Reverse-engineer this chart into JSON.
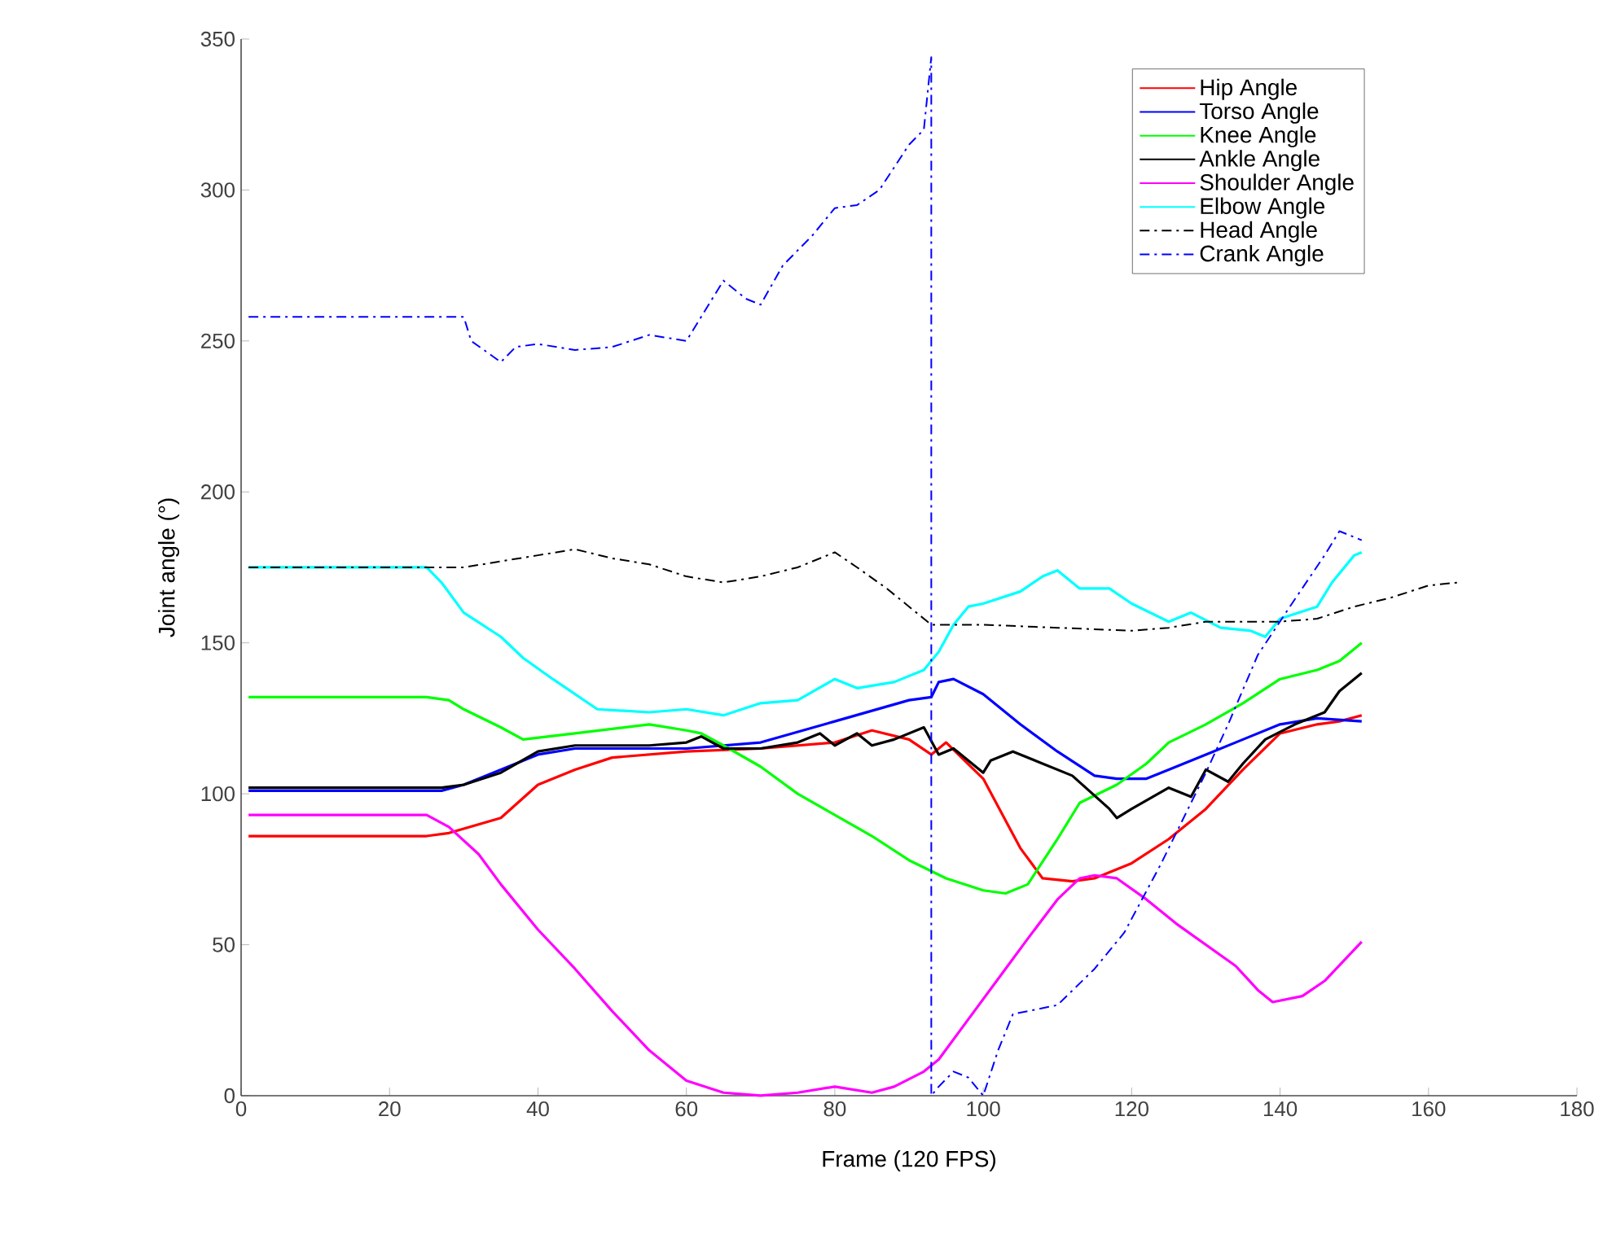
{
  "chart_data": {
    "type": "line",
    "xlabel": "Frame (120 FPS)",
    "ylabel": "Joint angle (°)",
    "xlim": [
      0,
      180
    ],
    "ylim": [
      0,
      350
    ],
    "xticks": [
      0,
      20,
      40,
      60,
      80,
      100,
      120,
      140,
      160,
      180
    ],
    "yticks": [
      0,
      50,
      100,
      150,
      200,
      250,
      300,
      350
    ],
    "grid": false,
    "legend": "top right",
    "marker": "none",
    "series": [
      {
        "name": "Hip Angle",
        "color": "#ff0000",
        "line_style": "solid",
        "x": [
          1,
          25,
          28,
          35,
          40,
          45,
          50,
          60,
          70,
          80,
          85,
          90,
          93,
          95,
          100,
          105,
          108,
          112,
          115,
          120,
          125,
          130,
          135,
          140,
          145,
          148,
          151
        ],
        "values": [
          86,
          86,
          87,
          92,
          103,
          108,
          112,
          114,
          115,
          117,
          121,
          118,
          113,
          117,
          105,
          82,
          72,
          71,
          72,
          77,
          85,
          95,
          108,
          120,
          123,
          124,
          126
        ]
      },
      {
        "name": "Torso Angle",
        "color": "#0000ff",
        "line_style": "solid",
        "x": [
          1,
          27,
          30,
          35,
          40,
          45,
          60,
          70,
          80,
          90,
          93,
          94,
          96,
          100,
          105,
          110,
          115,
          118,
          122,
          125,
          130,
          135,
          140,
          145,
          151
        ],
        "values": [
          101,
          101,
          103,
          108,
          113,
          115,
          115,
          117,
          124,
          131,
          132,
          137,
          138,
          133,
          123,
          114,
          106,
          105,
          105,
          108,
          113,
          118,
          123,
          125,
          124
        ]
      },
      {
        "name": "Knee Angle",
        "color": "#00ff00",
        "line_style": "solid",
        "x": [
          1,
          25,
          28,
          30,
          35,
          38,
          45,
          55,
          60,
          62,
          65,
          70,
          75,
          80,
          85,
          90,
          95,
          100,
          103,
          106,
          110,
          113,
          118,
          122,
          125,
          130,
          135,
          140,
          145,
          148,
          151
        ],
        "values": [
          132,
          132,
          131,
          128,
          122,
          118,
          120,
          123,
          121,
          120,
          116,
          109,
          100,
          93,
          86,
          78,
          72,
          68,
          67,
          70,
          85,
          97,
          103,
          110,
          117,
          123,
          130,
          138,
          141,
          144,
          150
        ]
      },
      {
        "name": "Ankle Angle",
        "color": "#000000",
        "line_style": "solid",
        "x": [
          1,
          27,
          30,
          35,
          40,
          45,
          55,
          60,
          62,
          65,
          70,
          75,
          78,
          80,
          83,
          85,
          88,
          92,
          94,
          96,
          100,
          101,
          104,
          108,
          112,
          117,
          118,
          120,
          125,
          128,
          130,
          133,
          135,
          138,
          142,
          146,
          148,
          151
        ],
        "values": [
          102,
          102,
          103,
          107,
          114,
          116,
          116,
          117,
          119,
          115,
          115,
          117,
          120,
          116,
          120,
          116,
          118,
          122,
          113,
          115,
          107,
          111,
          114,
          110,
          106,
          95,
          92,
          95,
          102,
          99,
          108,
          104,
          110,
          118,
          123,
          127,
          134,
          140
        ]
      },
      {
        "name": "Shoulder Angle",
        "color": "#ff00ff",
        "line_style": "solid",
        "x": [
          1,
          25,
          28,
          32,
          35,
          40,
          45,
          50,
          55,
          60,
          65,
          70,
          75,
          80,
          85,
          88,
          92,
          94,
          97,
          100,
          103,
          106,
          110,
          113,
          115,
          118,
          122,
          126,
          130,
          134,
          137,
          139,
          143,
          146,
          151
        ],
        "values": [
          93,
          93,
          89,
          80,
          70,
          55,
          42,
          28,
          15,
          5,
          1,
          0,
          1,
          3,
          1,
          3,
          8,
          12,
          22,
          32,
          42,
          52,
          65,
          72,
          73,
          72,
          65,
          57,
          50,
          43,
          35,
          31,
          33,
          38,
          51
        ]
      },
      {
        "name": "Elbow Angle",
        "color": "#00ffff",
        "line_style": "solid",
        "x": [
          1,
          25,
          27,
          30,
          35,
          38,
          42,
          45,
          48,
          55,
          60,
          65,
          70,
          75,
          80,
          83,
          88,
          92,
          94,
          96,
          98,
          100,
          105,
          108,
          110,
          113,
          117,
          120,
          125,
          128,
          132,
          136,
          138,
          140,
          145,
          147,
          150,
          151
        ],
        "values": [
          175,
          175,
          170,
          160,
          152,
          145,
          138,
          133,
          128,
          127,
          128,
          126,
          130,
          131,
          138,
          135,
          137,
          141,
          147,
          156,
          162,
          163,
          167,
          172,
          174,
          168,
          168,
          163,
          157,
          160,
          155,
          154,
          152,
          158,
          162,
          170,
          179,
          180
        ]
      },
      {
        "name": "Head Angle",
        "color": "#000000",
        "line_style": "dashdot",
        "x": [
          1,
          30,
          35,
          40,
          45,
          50,
          55,
          60,
          65,
          70,
          75,
          80,
          83,
          87,
          90,
          93,
          100,
          110,
          120,
          125,
          130,
          140,
          145,
          150,
          155,
          160,
          164
        ],
        "values": [
          175,
          175,
          177,
          179,
          181,
          178,
          176,
          172,
          170,
          172,
          175,
          180,
          175,
          168,
          162,
          156,
          156,
          155,
          154,
          155,
          157,
          157,
          158,
          162,
          165,
          169,
          170
        ]
      },
      {
        "name": "Crank Angle",
        "color": "#0000ff",
        "line_style": "dashdot",
        "x": [
          1,
          30,
          31,
          35,
          37,
          40,
          45,
          50,
          55,
          60,
          63,
          65,
          68,
          70,
          73,
          77,
          80,
          83,
          86,
          90,
          92,
          93,
          93,
          94,
          96,
          98,
          100,
          102,
          104,
          110,
          115,
          119,
          124,
          130,
          133,
          137,
          141.6,
          146,
          148,
          151
        ],
        "values": [
          258,
          258,
          250,
          243,
          248,
          249,
          247,
          248,
          252,
          250,
          262,
          270,
          264,
          262,
          275,
          285,
          294,
          295,
          300,
          315,
          320,
          344,
          0,
          3,
          8,
          6,
          0,
          15,
          27,
          30,
          42,
          54,
          77,
          107,
          123,
          146,
          163,
          179,
          187,
          184
        ]
      }
    ]
  }
}
